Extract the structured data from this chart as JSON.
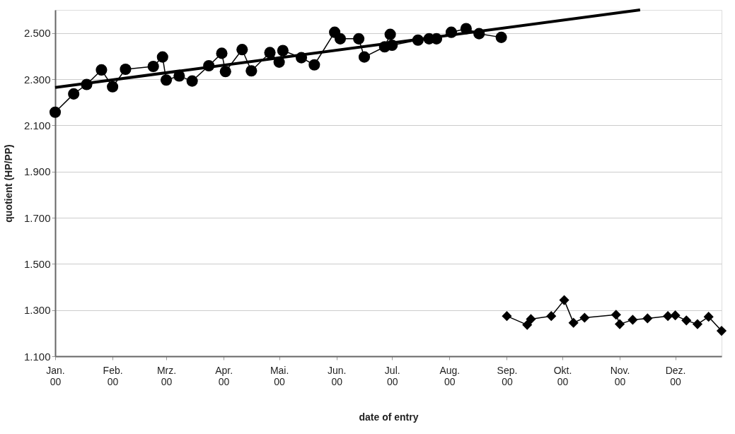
{
  "chart_data": {
    "type": "line",
    "xlabel": "date of entry",
    "ylabel": "quotient (HP/PP)",
    "xlim": [
      "2000-01-01",
      "2000-12-26"
    ],
    "ylim": [
      1.1,
      2.6
    ],
    "xticks": [
      {
        "value": "2000-01-01",
        "label": "Jan. 00"
      },
      {
        "value": "2000-02-01",
        "label": "Feb. 00"
      },
      {
        "value": "2000-03-01",
        "label": "Mrz. 00"
      },
      {
        "value": "2000-04-01",
        "label": "Apr. 00"
      },
      {
        "value": "2000-05-01",
        "label": "Mai. 00"
      },
      {
        "value": "2000-06-01",
        "label": "Jun. 00"
      },
      {
        "value": "2000-07-01",
        "label": "Jul. 00"
      },
      {
        "value": "2000-08-01",
        "label": "Aug. 00"
      },
      {
        "value": "2000-09-01",
        "label": "Sep. 00"
      },
      {
        "value": "2000-10-01",
        "label": "Okt. 00"
      },
      {
        "value": "2000-11-01",
        "label": "Nov. 00"
      },
      {
        "value": "2000-12-01",
        "label": "Dez. 00"
      }
    ],
    "yticks": [
      {
        "value": 1.1,
        "label": "1.100"
      },
      {
        "value": 1.3,
        "label": "1.300"
      },
      {
        "value": 1.5,
        "label": "1.500"
      },
      {
        "value": 1.7,
        "label": "1.700"
      },
      {
        "value": 1.9,
        "label": "1.900"
      },
      {
        "value": 2.1,
        "label": "2.100"
      },
      {
        "value": 2.3,
        "label": "2.300"
      },
      {
        "value": 2.5,
        "label": "2.500"
      }
    ],
    "grid": "y",
    "series": [
      {
        "color": "#000000",
        "marker": "circle",
        "x": [
          "2000-01-01",
          "2000-01-11",
          "2000-01-18",
          "2000-01-26",
          "2000-02-01",
          "2000-02-08",
          "2000-02-23",
          "2000-02-28",
          "2000-03-01",
          "2000-03-08",
          "2000-03-15",
          "2000-03-24",
          "2000-03-31",
          "2000-04-02",
          "2000-04-11",
          "2000-04-16",
          "2000-04-26",
          "2000-05-01",
          "2000-05-03",
          "2000-05-13",
          "2000-05-20",
          "2000-05-31",
          "2000-06-03",
          "2000-06-13",
          "2000-06-16",
          "2000-06-27",
          "2000-06-30",
          "2000-07-01",
          "2000-07-15",
          "2000-07-21",
          "2000-07-25",
          "2000-08-02",
          "2000-08-10",
          "2000-08-17",
          "2000-08-29"
        ],
        "values": [
          2.157,
          2.236,
          2.277,
          2.34,
          2.267,
          2.343,
          2.355,
          2.396,
          2.296,
          2.314,
          2.292,
          2.358,
          2.412,
          2.333,
          2.428,
          2.336,
          2.415,
          2.374,
          2.424,
          2.393,
          2.362,
          2.503,
          2.475,
          2.475,
          2.396,
          2.44,
          2.494,
          2.447,
          2.469,
          2.475,
          2.475,
          2.503,
          2.519,
          2.497,
          2.481
        ]
      },
      {
        "color": "#000000",
        "marker": "diamond",
        "x": [
          "2000-09-01",
          "2000-09-12",
          "2000-09-14",
          "2000-09-25",
          "2000-10-02",
          "2000-10-07",
          "2000-10-13",
          "2000-10-30",
          "2000-11-01",
          "2000-11-08",
          "2000-11-16",
          "2000-11-27",
          "2000-12-01",
          "2000-12-07",
          "2000-12-13",
          "2000-12-19",
          "2000-12-26"
        ],
        "values": [
          1.274,
          1.236,
          1.261,
          1.274,
          1.343,
          1.245,
          1.267,
          1.28,
          1.239,
          1.258,
          1.264,
          1.274,
          1.277,
          1.255,
          1.239,
          1.271,
          1.21
        ]
      },
      {
        "color": "#000000",
        "marker": "none",
        "x": [
          "2000-01-01",
          "2000-11-12"
        ],
        "values": [
          2.264,
          2.6
        ]
      }
    ]
  }
}
